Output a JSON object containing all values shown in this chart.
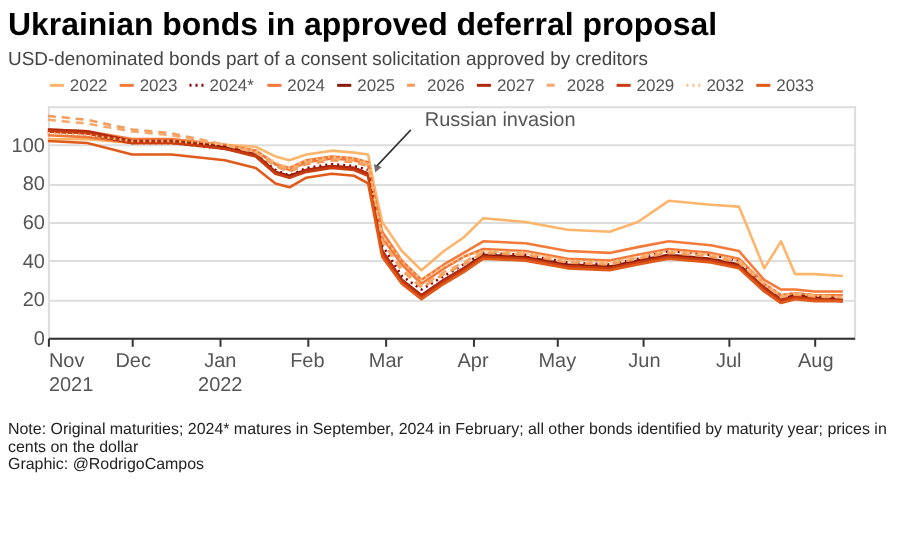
{
  "chart_data": {
    "type": "line",
    "title": "Ukrainian bonds in approved deferral proposal",
    "subtitle": "USD-denominated bonds part of a consent solicitation approved by creditors",
    "x": [
      "2021-11-01",
      "2021-11-15",
      "2021-12-01",
      "2021-12-15",
      "2022-01-03",
      "2022-01-14",
      "2022-01-21",
      "2022-01-26",
      "2022-02-01",
      "2022-02-10",
      "2022-02-18",
      "2022-02-23",
      "2022-02-25",
      "2022-02-28",
      "2022-03-07",
      "2022-03-14",
      "2022-03-22",
      "2022-03-29",
      "2022-04-05",
      "2022-04-20",
      "2022-05-05",
      "2022-05-20",
      "2022-05-30",
      "2022-06-10",
      "2022-06-25",
      "2022-07-05",
      "2022-07-14",
      "2022-07-20",
      "2022-07-25",
      "2022-08-01",
      "2022-08-11"
    ],
    "series": [
      {
        "name": "2022",
        "color": "#fdb56b",
        "line_style": "solid",
        "values": [
          103,
          103,
          101,
          101,
          100,
          99,
          94,
          92,
          95,
          97,
          96,
          95,
          80,
          60,
          45,
          35,
          45,
          52,
          62,
          60,
          56,
          55,
          60,
          71,
          69,
          68,
          36,
          50,
          33,
          33,
          32
        ]
      },
      {
        "name": "2023",
        "color": "#f47a3a",
        "line_style": "solid",
        "values": [
          105,
          104,
          101,
          101,
          99,
          97,
          90,
          88,
          92,
          94,
          93,
          91,
          75,
          55,
          40,
          30,
          38,
          44,
          50,
          49,
          45,
          44,
          47,
          50,
          48,
          45,
          30,
          25,
          25,
          24,
          24
        ]
      },
      {
        "name": "2024*",
        "color": "#8b0000",
        "line_style": "dotted",
        "values": [
          106,
          105,
          101,
          101,
          98,
          95,
          87,
          84,
          88,
          90,
          89,
          87,
          70,
          48,
          32,
          25,
          32,
          38,
          44,
          43,
          39,
          38,
          41,
          45,
          43,
          40,
          28,
          22,
          23,
          22,
          21
        ]
      },
      {
        "name": "2024",
        "color": "#f5773a",
        "line_style": "solid",
        "values": [
          108,
          107,
          103,
          103,
          100,
          97,
          90,
          87,
          91,
          93,
          92,
          90,
          74,
          52,
          38,
          28,
          36,
          42,
          46,
          45,
          41,
          40,
          43,
          46,
          44,
          41,
          28,
          22,
          23,
          22,
          22
        ]
      },
      {
        "name": "2025",
        "color": "#8b1a0e",
        "line_style": "solid",
        "values": [
          107,
          106,
          101,
          102,
          99,
          95,
          86,
          84,
          87,
          89,
          88,
          85,
          70,
          45,
          30,
          22,
          30,
          36,
          43,
          42,
          38,
          37,
          40,
          43,
          41,
          38,
          26,
          20,
          22,
          21,
          20
        ]
      },
      {
        "name": "2026",
        "color": "#f59b5a",
        "line_style": "dashed",
        "values": [
          115,
          113,
          108,
          106,
          100,
          96,
          89,
          86,
          90,
          92,
          91,
          89,
          72,
          50,
          35,
          26,
          33,
          38,
          44,
          43,
          39,
          38,
          41,
          44,
          42,
          39,
          27,
          21,
          22,
          21,
          21
        ]
      },
      {
        "name": "2027",
        "color": "#b22a10",
        "line_style": "solid",
        "values": [
          108,
          107,
          102,
          102,
          98,
          95,
          86,
          83,
          87,
          89,
          88,
          85,
          68,
          45,
          30,
          22,
          30,
          36,
          42,
          41,
          37,
          36,
          39,
          42,
          40,
          37,
          26,
          20,
          21,
          20,
          19
        ]
      },
      {
        "name": "2028",
        "color": "#f7a86a",
        "line_style": "dashed",
        "values": [
          113,
          111,
          107,
          105,
          100,
          96,
          90,
          87,
          91,
          93,
          92,
          90,
          73,
          50,
          36,
          27,
          34,
          39,
          45,
          44,
          40,
          39,
          42,
          45,
          43,
          40,
          28,
          21,
          23,
          22,
          21
        ]
      },
      {
        "name": "2029",
        "color": "#c83c10",
        "line_style": "solid",
        "values": [
          107,
          106,
          101,
          101,
          98,
          94,
          85,
          83,
          86,
          88,
          87,
          84,
          68,
          44,
          29,
          21,
          29,
          35,
          42,
          41,
          37,
          36,
          39,
          42,
          40,
          37,
          25,
          19,
          21,
          20,
          19
        ]
      },
      {
        "name": "2032",
        "color": "#fbc27f",
        "line_style": "dotted",
        "values": [
          106,
          105,
          102,
          102,
          100,
          97,
          91,
          88,
          92,
          94,
          93,
          91,
          74,
          53,
          40,
          30,
          37,
          42,
          45,
          44,
          40,
          39,
          42,
          45,
          43,
          40,
          28,
          22,
          23,
          22,
          21
        ]
      },
      {
        "name": "2033",
        "color": "#e05a1a",
        "line_style": "solid",
        "values": [
          102,
          101,
          95,
          95,
          92,
          88,
          80,
          78,
          83,
          85,
          84,
          80,
          65,
          42,
          28,
          20,
          28,
          34,
          41,
          40,
          36,
          35,
          38,
          41,
          39,
          36,
          24,
          18,
          20,
          19,
          19
        ]
      }
    ],
    "xlim": [
      "2021-11-01",
      "2022-08-15"
    ],
    "xticks": [
      {
        "value": "2021-11-01",
        "label": "Nov 2021"
      },
      {
        "value": "2021-12-01",
        "label": "Dec"
      },
      {
        "value": "2022-01-01",
        "label": "Jan 2022"
      },
      {
        "value": "2022-02-01",
        "label": "Feb"
      },
      {
        "value": "2022-03-01",
        "label": "Mar"
      },
      {
        "value": "2022-04-01",
        "label": "Apr"
      },
      {
        "value": "2022-05-01",
        "label": "May"
      },
      {
        "value": "2022-06-01",
        "label": "Jun"
      },
      {
        "value": "2022-07-01",
        "label": "Jul"
      },
      {
        "value": "2022-08-01",
        "label": "Aug"
      }
    ],
    "ylim": [
      0,
      120
    ],
    "yticks": [
      0,
      20,
      40,
      60,
      80,
      100
    ],
    "grid": "y",
    "legend": "top",
    "annotations": [
      {
        "text": "Russian invasion",
        "x": "2022-02-24",
        "y": 85
      },
      "Note: Original maturities; 2024* matures in September, 2024 in February; all other bonds identified by maturity year; prices in cents on the dollar",
      "Graphic: @RodrigoCampos"
    ]
  }
}
